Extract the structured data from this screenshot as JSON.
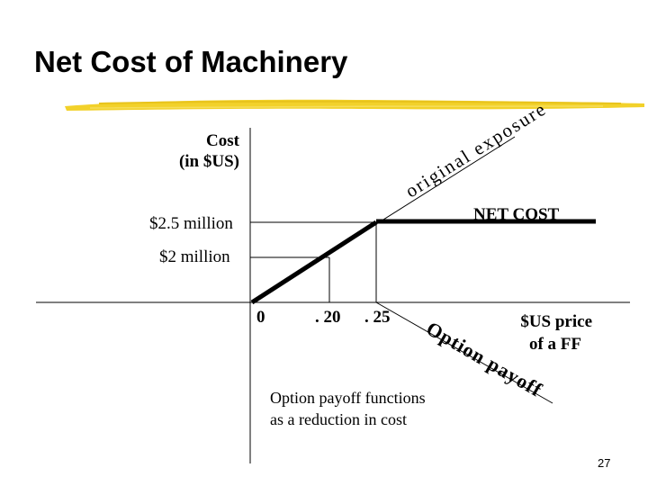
{
  "slide": {
    "title": "Net Cost of Machinery",
    "page_number": "27"
  },
  "y_axis": {
    "label_line1": "Cost",
    "label_line2": "(in $US)",
    "tick_high": "$2.5 million",
    "tick_low": "$2 million"
  },
  "x_axis": {
    "tick_0": "0",
    "tick_1": ". 20",
    "tick_2": ". 25",
    "label_line1": "$US price",
    "label_line2": "of a FF"
  },
  "lines": {
    "original_exposure": "original exposure",
    "net_cost": "NET COST",
    "option_payoff": "Option payoff"
  },
  "caption": {
    "line1": "Option payoff functions",
    "line2": "as a reduction in cost"
  },
  "colors": {
    "title_bar": "#f2d12a",
    "ink": "#000000"
  }
}
